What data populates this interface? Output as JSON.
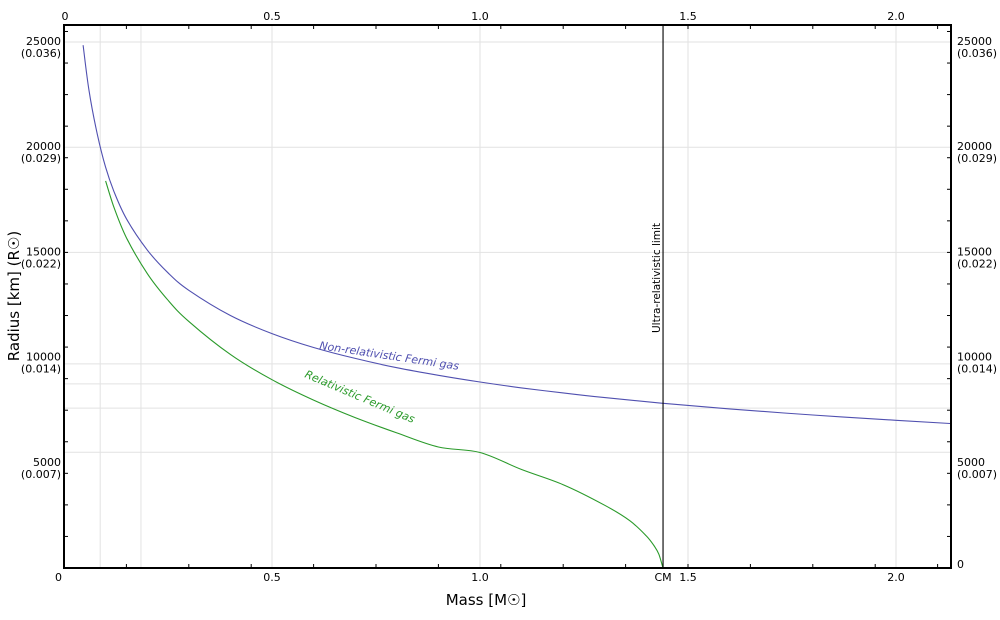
{
  "chart_data": {
    "type": "line",
    "title": "",
    "xlabel": "Mass [M☉]",
    "ylabel": "Radius [km] (R☉)",
    "xlim": [
      0,
      2.13
    ],
    "ylim": [
      0,
      25800
    ],
    "grid": true,
    "x_ticks": [
      {
        "value": 0,
        "label": "0"
      },
      {
        "value": 0.5,
        "label": "0.5"
      },
      {
        "value": 1.0,
        "label": "1.0"
      },
      {
        "value": 1.44,
        "label": "CM"
      },
      {
        "value": 1.5,
        "label": "1.5"
      },
      {
        "value": 2.0,
        "label": "2.0"
      }
    ],
    "x_ticks_top": [
      {
        "value": 0,
        "label": "0"
      },
      {
        "value": 0.5,
        "label": "0.5"
      },
      {
        "value": 1.0,
        "label": "1.0"
      },
      {
        "value": 1.5,
        "label": "1.5"
      },
      {
        "value": 2.0,
        "label": "2.0"
      }
    ],
    "y_ticks": [
      {
        "value": 0,
        "label": "0",
        "sub": ""
      },
      {
        "value": 5000,
        "label": "5000",
        "sub": "(0.007)"
      },
      {
        "value": 10000,
        "label": "10000",
        "sub": "(0.014)"
      },
      {
        "value": 15000,
        "label": "15000",
        "sub": "(0.022)"
      },
      {
        "value": 20000,
        "label": "20000",
        "sub": "(0.029)"
      },
      {
        "value": 25000,
        "label": "25000",
        "sub": "(0.036)"
      }
    ],
    "series": [
      {
        "name": "Non-relativistic Fermi gas",
        "color": "#5050b0",
        "x": [
          0.046,
          0.06,
          0.08,
          0.1,
          0.12,
          0.15,
          0.2,
          0.25,
          0.3,
          0.4,
          0.5,
          0.6,
          0.7,
          0.8,
          0.9,
          1.0,
          1.1,
          1.2,
          1.3,
          1.44,
          1.6,
          1.8,
          2.0,
          2.13
        ],
        "y": [
          24850,
          22700,
          20620,
          19050,
          17900,
          16600,
          15120,
          14030,
          13200,
          12000,
          11140,
          10480,
          9960,
          9520,
          9160,
          8840,
          8560,
          8320,
          8100,
          7830,
          7560,
          7270,
          7020,
          6870
        ]
      },
      {
        "name": "Relativistic Fermi gas",
        "color": "#2a9a2a",
        "x": [
          0.1,
          0.12,
          0.15,
          0.2,
          0.25,
          0.3,
          0.4,
          0.5,
          0.6,
          0.7,
          0.8,
          0.9,
          1.0,
          1.1,
          1.2,
          1.3,
          1.36,
          1.4,
          1.42,
          1.43,
          1.44
        ],
        "y": [
          18400,
          17150,
          15700,
          14000,
          12730,
          11720,
          10150,
          8950,
          7980,
          7150,
          6420,
          5750,
          5490,
          4680,
          3960,
          2980,
          2250,
          1520,
          1010,
          650,
          0
        ]
      }
    ],
    "annotations": [
      {
        "type": "vline",
        "x": 1.44,
        "label": "Ultra-relativistic limit",
        "color": "#000000"
      },
      {
        "type": "text",
        "text": "Non-relativistic Fermi gas",
        "series": 0
      },
      {
        "type": "text",
        "text": "Relativistic Fermi gas",
        "series": 1
      }
    ]
  },
  "labels": {
    "xlabel": "Mass [M☉]",
    "ylabel": "Radius [km] (R☉)",
    "nonrel": "Non-relativistic Fermi gas",
    "rel": "Relativistic Fermi gas",
    "limit": "Ultra-relativistic limit",
    "cm": "CM"
  },
  "colors": {
    "nonrel": "#5050b0",
    "rel": "#2a9a2a",
    "axis": "#000000",
    "grid": "#e2e2e2"
  }
}
